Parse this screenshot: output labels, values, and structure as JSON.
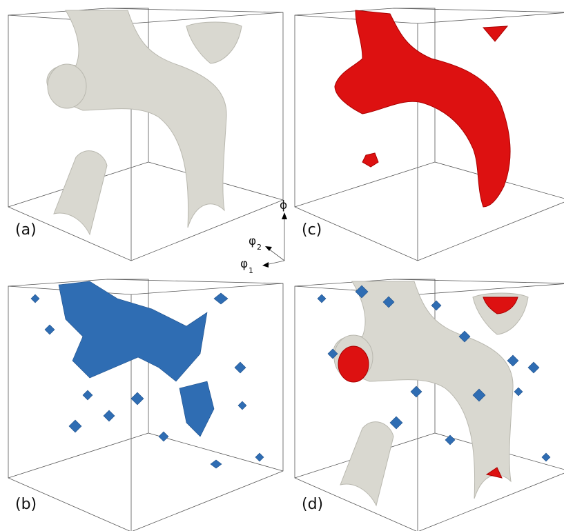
{
  "panels": {
    "a": "(a)",
    "b": "(b)",
    "c": "(c)",
    "d": "(d)"
  },
  "axes": {
    "phi": "ϕ",
    "phi2": "φ",
    "phi2_sub": "2",
    "phi1": "φ",
    "phi1_sub": "1"
  }
}
